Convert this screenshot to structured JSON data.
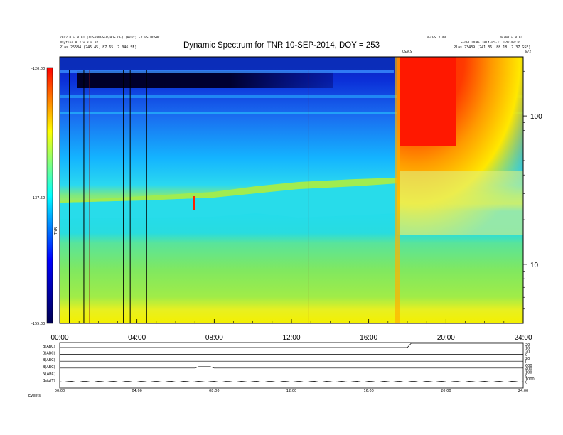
{
  "header": {
    "left_line1": "2012.0 v 8.01 [CDSPANGSEP/BDS OE] (Rsvt) -2 PS DDSPC",
    "left_line2": "Mayflns 0.3 v 8.0.02",
    "left_line3": "Plas   25584 (245.45, 87.65, 7.046 SE)",
    "right_line1": "NECPS 3.40",
    "right_line1b": "LDB7001v 8.01",
    "right_line2": "SECPLTPURE 2014-05-11 T20:43:16",
    "right_line3": "Plas   23439 (241.36, 88.18, 7.37 GSE)",
    "marker_label": "CSACS",
    "top_right_tick": "8/2"
  },
  "colorbar": {
    "ticks": [
      "-120.00",
      "-137.50",
      "-155.00"
    ],
    "label": "TNR",
    "colors": [
      "#ff0000",
      "#ffff00",
      "#00ffff",
      "#0000ff",
      "#000050"
    ]
  },
  "chart_data": [
    {
      "type": "heatmap",
      "title": "Dynamic Spectrum for TNR 10-SEP-2014, DOY = 253",
      "xlabel": "",
      "ylabel": "",
      "x_tick_labels": [
        "00:00",
        "04:00",
        "08:00",
        "12:00",
        "16:00",
        "20:00",
        "24:00"
      ],
      "x_range_hours": [
        0,
        24
      ],
      "y_scale": "log",
      "y_tick_labels": [
        "100",
        "10"
      ],
      "y_tick_values": [
        100,
        10
      ],
      "y_range": [
        4,
        250
      ],
      "z_range": [
        -155.0,
        -120.0
      ],
      "grid": false,
      "legend": "colorbar-left",
      "features": [
        {
          "name": "radio burst onset",
          "time_hours": 17.5
        },
        {
          "name": "plasma line low",
          "freq_start": 28,
          "freq_end": 38
        },
        {
          "name": "vertical interference lines",
          "time_hours": [
            0.5,
            1.25,
            1.55,
            3.3,
            3.65,
            4.5,
            12.9
          ]
        }
      ]
    },
    {
      "type": "line",
      "title": "",
      "x_tick_labels": [
        "00:00",
        "04:00",
        "08:00",
        "12:00",
        "16:00",
        "20:00",
        "24:00"
      ],
      "series": [
        {
          "name": "B(ABC)",
          "right_labels": [
            "20",
            "10"
          ]
        },
        {
          "name": "B(ABC)",
          "right_labels": [
            "20",
            "0"
          ]
        },
        {
          "name": "B(ABC)",
          "right_labels": [
            "20",
            "0"
          ]
        },
        {
          "name": "B(ABC)",
          "right_labels": [
            "600",
            "400"
          ]
        },
        {
          "name": "N(ABC)",
          "right_labels": [
            "100",
            "0"
          ]
        },
        {
          "name": "Bsig(T)",
          "right_labels": [
            "1000",
            "0"
          ]
        }
      ],
      "footer_label": "Events"
    }
  ]
}
